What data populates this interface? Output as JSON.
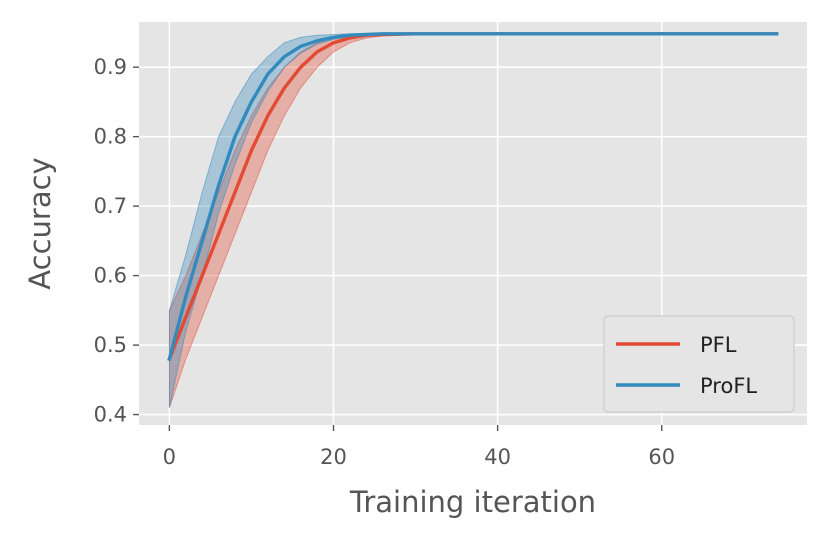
{
  "chart_data": {
    "type": "line",
    "title": "",
    "xlabel": "Training iteration",
    "ylabel": "Accuracy",
    "xlim": [
      -3.7,
      77.7
    ],
    "ylim": [
      0.385,
      0.965
    ],
    "xticks": [
      0,
      20,
      40,
      60
    ],
    "yticks": [
      0.4,
      0.5,
      0.6,
      0.7,
      0.8,
      0.9
    ],
    "xtick_labels": [
      "0",
      "20",
      "40",
      "60"
    ],
    "ytick_labels": [
      "0.4",
      "0.5",
      "0.6",
      "0.7",
      "0.8",
      "0.9"
    ],
    "grid": true,
    "legend_position": "lower-right",
    "series": [
      {
        "name": "PFL",
        "color": "#E24A33",
        "x": [
          0,
          2,
          4,
          6,
          8,
          10,
          12,
          14,
          16,
          18,
          20,
          22,
          24,
          26,
          30,
          40,
          50,
          60,
          74
        ],
        "y": [
          0.48,
          0.54,
          0.6,
          0.66,
          0.72,
          0.78,
          0.83,
          0.87,
          0.9,
          0.922,
          0.935,
          0.942,
          0.946,
          0.947,
          0.948,
          0.948,
          0.948,
          0.948,
          0.948
        ],
        "lower": [
          0.41,
          0.48,
          0.54,
          0.6,
          0.66,
          0.72,
          0.78,
          0.83,
          0.87,
          0.9,
          0.922,
          0.935,
          0.942,
          0.945,
          0.947,
          0.948,
          0.948,
          0.948,
          0.948
        ],
        "upper": [
          0.55,
          0.6,
          0.66,
          0.72,
          0.78,
          0.83,
          0.87,
          0.9,
          0.922,
          0.935,
          0.943,
          0.946,
          0.947,
          0.948,
          0.948,
          0.948,
          0.948,
          0.948,
          0.948
        ]
      },
      {
        "name": "ProFL",
        "color": "#348ABD",
        "x": [
          0,
          2,
          4,
          6,
          8,
          10,
          12,
          14,
          16,
          18,
          20,
          22,
          24,
          26,
          30,
          40,
          50,
          60,
          74
        ],
        "y": [
          0.48,
          0.57,
          0.65,
          0.73,
          0.8,
          0.85,
          0.89,
          0.915,
          0.93,
          0.938,
          0.943,
          0.946,
          0.947,
          0.948,
          0.948,
          0.948,
          0.948,
          0.948,
          0.948
        ],
        "lower": [
          0.41,
          0.52,
          0.6,
          0.69,
          0.76,
          0.82,
          0.865,
          0.9,
          0.92,
          0.933,
          0.94,
          0.944,
          0.946,
          0.947,
          0.948,
          0.948,
          0.948,
          0.948,
          0.948
        ],
        "upper": [
          0.55,
          0.63,
          0.72,
          0.8,
          0.85,
          0.89,
          0.915,
          0.935,
          0.943,
          0.946,
          0.947,
          0.948,
          0.948,
          0.948,
          0.948,
          0.948,
          0.948,
          0.948,
          0.948
        ]
      }
    ]
  }
}
